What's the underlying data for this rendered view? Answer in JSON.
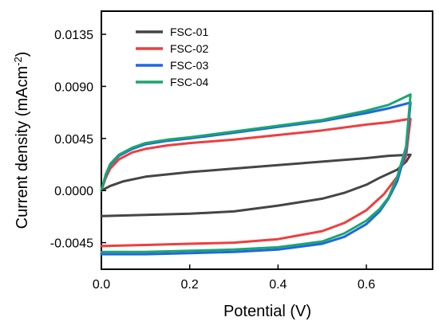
{
  "chart_data": {
    "type": "line",
    "title": "",
    "xlabel": "Potential (V)",
    "ylabel_main": "Current density (mAcm",
    "ylabel_sup": "-2",
    "ylabel_close": ")",
    "xlim": [
      0.0,
      0.75
    ],
    "ylim": [
      -0.0068,
      0.0155
    ],
    "x_ticks": [
      0.0,
      0.2,
      0.4,
      0.6
    ],
    "x_tick_labels": [
      "0.0",
      "0.2",
      "0.4",
      "0.6"
    ],
    "y_ticks": [
      -0.0045,
      0.0,
      0.0045,
      0.009,
      0.0135
    ],
    "y_tick_labels": [
      "-0.0045",
      "0.0000",
      "0.0045",
      "0.0090",
      "0.0135"
    ],
    "grid": false,
    "legend_position": "top-left",
    "series": [
      {
        "name": "FSC-01",
        "color": "#454545",
        "points": [
          [
            0.0,
            0.0
          ],
          [
            0.02,
            0.0004
          ],
          [
            0.05,
            0.0008
          ],
          [
            0.1,
            0.0012
          ],
          [
            0.2,
            0.0016
          ],
          [
            0.3,
            0.0019
          ],
          [
            0.4,
            0.0022
          ],
          [
            0.5,
            0.0025
          ],
          [
            0.6,
            0.0028
          ],
          [
            0.65,
            0.003
          ],
          [
            0.7,
            0.0031
          ],
          [
            0.69,
            0.0025
          ],
          [
            0.67,
            0.0018
          ],
          [
            0.63,
            0.0011
          ],
          [
            0.6,
            0.0005
          ],
          [
            0.55,
            -0.0002
          ],
          [
            0.5,
            -0.0007
          ],
          [
            0.4,
            -0.0013
          ],
          [
            0.3,
            -0.0018
          ],
          [
            0.2,
            -0.002
          ],
          [
            0.1,
            -0.0021
          ],
          [
            0.0,
            -0.0022
          ]
        ]
      },
      {
        "name": "FSC-02",
        "color": "#ef3e3e",
        "points": [
          [
            0.0,
            0.0
          ],
          [
            0.01,
            0.0011
          ],
          [
            0.02,
            0.0019
          ],
          [
            0.04,
            0.0027
          ],
          [
            0.07,
            0.0033
          ],
          [
            0.1,
            0.0036
          ],
          [
            0.15,
            0.0039
          ],
          [
            0.2,
            0.0041
          ],
          [
            0.3,
            0.0044
          ],
          [
            0.4,
            0.0048
          ],
          [
            0.5,
            0.0052
          ],
          [
            0.6,
            0.0057
          ],
          [
            0.65,
            0.0059
          ],
          [
            0.7,
            0.0062
          ],
          [
            0.69,
            0.003
          ],
          [
            0.67,
            0.0012
          ],
          [
            0.64,
            -0.0003
          ],
          [
            0.6,
            -0.0017
          ],
          [
            0.55,
            -0.0028
          ],
          [
            0.5,
            -0.0035
          ],
          [
            0.4,
            -0.0042
          ],
          [
            0.3,
            -0.0045
          ],
          [
            0.2,
            -0.0046
          ],
          [
            0.1,
            -0.0047
          ],
          [
            0.0,
            -0.0048
          ]
        ]
      },
      {
        "name": "FSC-03",
        "color": "#1e66e6",
        "points": [
          [
            0.0,
            0.0
          ],
          [
            0.01,
            0.0013
          ],
          [
            0.02,
            0.0022
          ],
          [
            0.04,
            0.003
          ],
          [
            0.07,
            0.0036
          ],
          [
            0.1,
            0.004
          ],
          [
            0.15,
            0.0043
          ],
          [
            0.2,
            0.0045
          ],
          [
            0.3,
            0.005
          ],
          [
            0.4,
            0.0055
          ],
          [
            0.5,
            0.006
          ],
          [
            0.6,
            0.0067
          ],
          [
            0.65,
            0.0071
          ],
          [
            0.7,
            0.0076
          ],
          [
            0.69,
            0.0035
          ],
          [
            0.67,
            0.0008
          ],
          [
            0.65,
            -0.0007
          ],
          [
            0.63,
            -0.0018
          ],
          [
            0.6,
            -0.0029
          ],
          [
            0.55,
            -0.004
          ],
          [
            0.5,
            -0.0046
          ],
          [
            0.4,
            -0.0051
          ],
          [
            0.3,
            -0.0053
          ],
          [
            0.2,
            -0.0054
          ],
          [
            0.1,
            -0.0055
          ],
          [
            0.0,
            -0.0055
          ]
        ]
      },
      {
        "name": "FSC-04",
        "color": "#1aa66e",
        "points": [
          [
            0.0,
            0.0
          ],
          [
            0.01,
            0.0014
          ],
          [
            0.02,
            0.0023
          ],
          [
            0.04,
            0.0031
          ],
          [
            0.07,
            0.0037
          ],
          [
            0.1,
            0.0041
          ],
          [
            0.15,
            0.0044
          ],
          [
            0.2,
            0.0046
          ],
          [
            0.3,
            0.0051
          ],
          [
            0.4,
            0.0056
          ],
          [
            0.5,
            0.0061
          ],
          [
            0.6,
            0.0069
          ],
          [
            0.65,
            0.0074
          ],
          [
            0.7,
            0.0083
          ],
          [
            0.69,
            0.0038
          ],
          [
            0.67,
            0.0012
          ],
          [
            0.65,
            -0.0006
          ],
          [
            0.63,
            -0.0016
          ],
          [
            0.6,
            -0.0026
          ],
          [
            0.55,
            -0.0037
          ],
          [
            0.5,
            -0.0044
          ],
          [
            0.4,
            -0.0049
          ],
          [
            0.3,
            -0.0051
          ],
          [
            0.2,
            -0.0052
          ],
          [
            0.1,
            -0.0053
          ],
          [
            0.0,
            -0.0053
          ]
        ]
      }
    ]
  }
}
